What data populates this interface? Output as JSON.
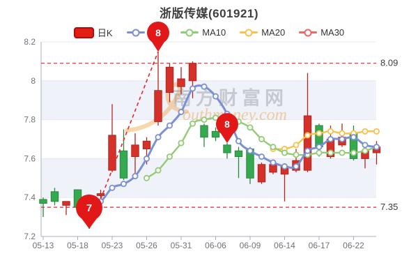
{
  "header": {
    "title": "浙版传媒(601921)"
  },
  "legend": {
    "items": [
      {
        "label": "日K",
        "type": "candle",
        "color": "#e11d16"
      },
      {
        "label": "MA5",
        "type": "line",
        "color": "#7b8fd5"
      },
      {
        "label": "MA10",
        "type": "line",
        "color": "#91cc75"
      },
      {
        "label": "MA20",
        "type": "line",
        "color": "#f7c14b"
      },
      {
        "label": "MA30",
        "type": "line",
        "color": "#ee6666"
      }
    ]
  },
  "watermark": {
    "cn": "南方财富网",
    "en": "outhmoney.com"
  },
  "chart_data": {
    "type": "candlestick",
    "title": "浙版传媒(601921)",
    "ylim": [
      7.2,
      8.2
    ],
    "y_ticks": [
      {
        "label": "8.2",
        "value": 8.2
      },
      {
        "label": "8",
        "value": 8.0
      },
      {
        "label": "7.8",
        "value": 7.8
      },
      {
        "label": "7.6",
        "value": 7.6
      },
      {
        "label": "7.4",
        "value": 7.4
      },
      {
        "label": "7.2",
        "value": 7.2
      }
    ],
    "x_tick_labels": [
      "05-13",
      "05-18",
      "05-23",
      "05-26",
      "05-31",
      "06-06",
      "06-09",
      "06-14",
      "06-17",
      "06-22"
    ],
    "dates": [
      "05-13",
      "05-16",
      "05-17",
      "05-18",
      "05-19",
      "05-20",
      "05-23",
      "05-24",
      "05-25",
      "05-26",
      "05-27",
      "05-30",
      "05-31",
      "06-01",
      "06-02",
      "06-06",
      "06-07",
      "06-08",
      "06-09",
      "06-10",
      "06-13",
      "06-14",
      "06-15",
      "06-16",
      "06-17",
      "06-20",
      "06-21",
      "06-22",
      "06-23",
      "06-24"
    ],
    "candles": {
      "open": [
        7.39,
        7.43,
        7.36,
        7.44,
        7.3,
        7.41,
        7.54,
        7.64,
        7.61,
        7.65,
        7.79,
        7.94,
        7.97,
        8.0,
        7.77,
        7.74,
        7.67,
        7.64,
        7.65,
        7.48,
        7.53,
        7.52,
        7.54,
        7.54,
        7.77,
        7.61,
        7.67,
        7.73,
        7.6,
        7.63
      ],
      "close": [
        7.37,
        7.38,
        7.38,
        7.35,
        7.35,
        7.42,
        7.72,
        7.5,
        7.67,
        7.69,
        7.95,
        8.07,
        8.01,
        8.09,
        7.71,
        7.71,
        7.63,
        7.61,
        7.5,
        7.57,
        7.57,
        7.56,
        7.59,
        7.82,
        7.66,
        7.7,
        7.71,
        7.6,
        7.64,
        7.66
      ],
      "high": [
        7.4,
        7.45,
        7.38,
        7.44,
        7.36,
        7.44,
        7.88,
        7.75,
        7.73,
        7.71,
        8.15,
        8.09,
        8.07,
        8.1,
        7.78,
        7.76,
        7.68,
        7.66,
        7.66,
        7.58,
        7.59,
        7.57,
        7.65,
        8.04,
        7.78,
        7.77,
        7.78,
        7.77,
        7.64,
        7.69
      ],
      "low": [
        7.3,
        7.36,
        7.31,
        7.34,
        7.24,
        7.34,
        7.53,
        7.49,
        7.51,
        7.57,
        7.77,
        7.89,
        7.93,
        7.91,
        7.66,
        7.69,
        7.6,
        7.5,
        7.47,
        7.47,
        7.52,
        7.38,
        7.53,
        7.53,
        7.61,
        7.6,
        7.66,
        7.59,
        7.55,
        7.57
      ]
    },
    "series": [
      {
        "name": "MA5",
        "color": "#7b8fd5",
        "values": [
          null,
          null,
          null,
          null,
          7.37,
          7.38,
          7.45,
          7.47,
          7.51,
          7.6,
          7.71,
          7.77,
          7.84,
          7.96,
          7.97,
          7.92,
          7.83,
          7.69,
          7.64,
          7.61,
          7.58,
          7.56,
          7.56,
          7.64,
          7.66,
          7.7,
          7.7,
          7.71,
          7.67,
          7.66
        ]
      },
      {
        "name": "MA10",
        "color": "#91cc75",
        "values": [
          null,
          null,
          null,
          null,
          null,
          null,
          null,
          null,
          null,
          7.5,
          7.54,
          7.61,
          7.68,
          7.78,
          7.8,
          7.81,
          7.81,
          7.79,
          7.76,
          7.7,
          7.66,
          7.63,
          7.62,
          7.62,
          7.63,
          7.63,
          7.63,
          7.63,
          7.64,
          7.66
        ]
      },
      {
        "name": "MA20",
        "color": "#f7c14b",
        "values": [
          null,
          null,
          null,
          null,
          null,
          null,
          null,
          null,
          null,
          null,
          null,
          null,
          null,
          null,
          null,
          null,
          null,
          null,
          null,
          null,
          7.65,
          7.65,
          7.67,
          7.72,
          7.73,
          7.74,
          7.73,
          7.73,
          7.74,
          7.74
        ]
      },
      {
        "name": "MA30",
        "color": "#ee6666",
        "values": [
          null,
          null,
          null,
          null,
          null,
          null,
          null,
          null,
          null,
          null,
          null,
          null,
          null,
          null,
          null,
          null,
          null,
          null,
          null,
          null,
          null,
          null,
          null,
          null,
          null,
          null,
          null,
          null,
          null,
          null
        ]
      }
    ],
    "ref_lines": [
      {
        "label": "8.09",
        "value": 8.09
      },
      {
        "label": "7.35",
        "value": 7.35
      }
    ],
    "markers": [
      {
        "label": "7",
        "index": 4,
        "at": "low",
        "value": 7.24
      },
      {
        "label": "8",
        "index": 10,
        "at": "high",
        "value": 8.15
      },
      {
        "label": "8",
        "index": 16,
        "at": "high",
        "value": 7.68
      }
    ],
    "trend_line": {
      "from_marker": 0,
      "to_marker": 1
    },
    "colors": {
      "up": "#d4312b",
      "up_border": "#b3241f",
      "down": "#35a94f",
      "down_border": "#28873f",
      "ref_line": "#e3242b",
      "pin": "#e21718"
    }
  }
}
